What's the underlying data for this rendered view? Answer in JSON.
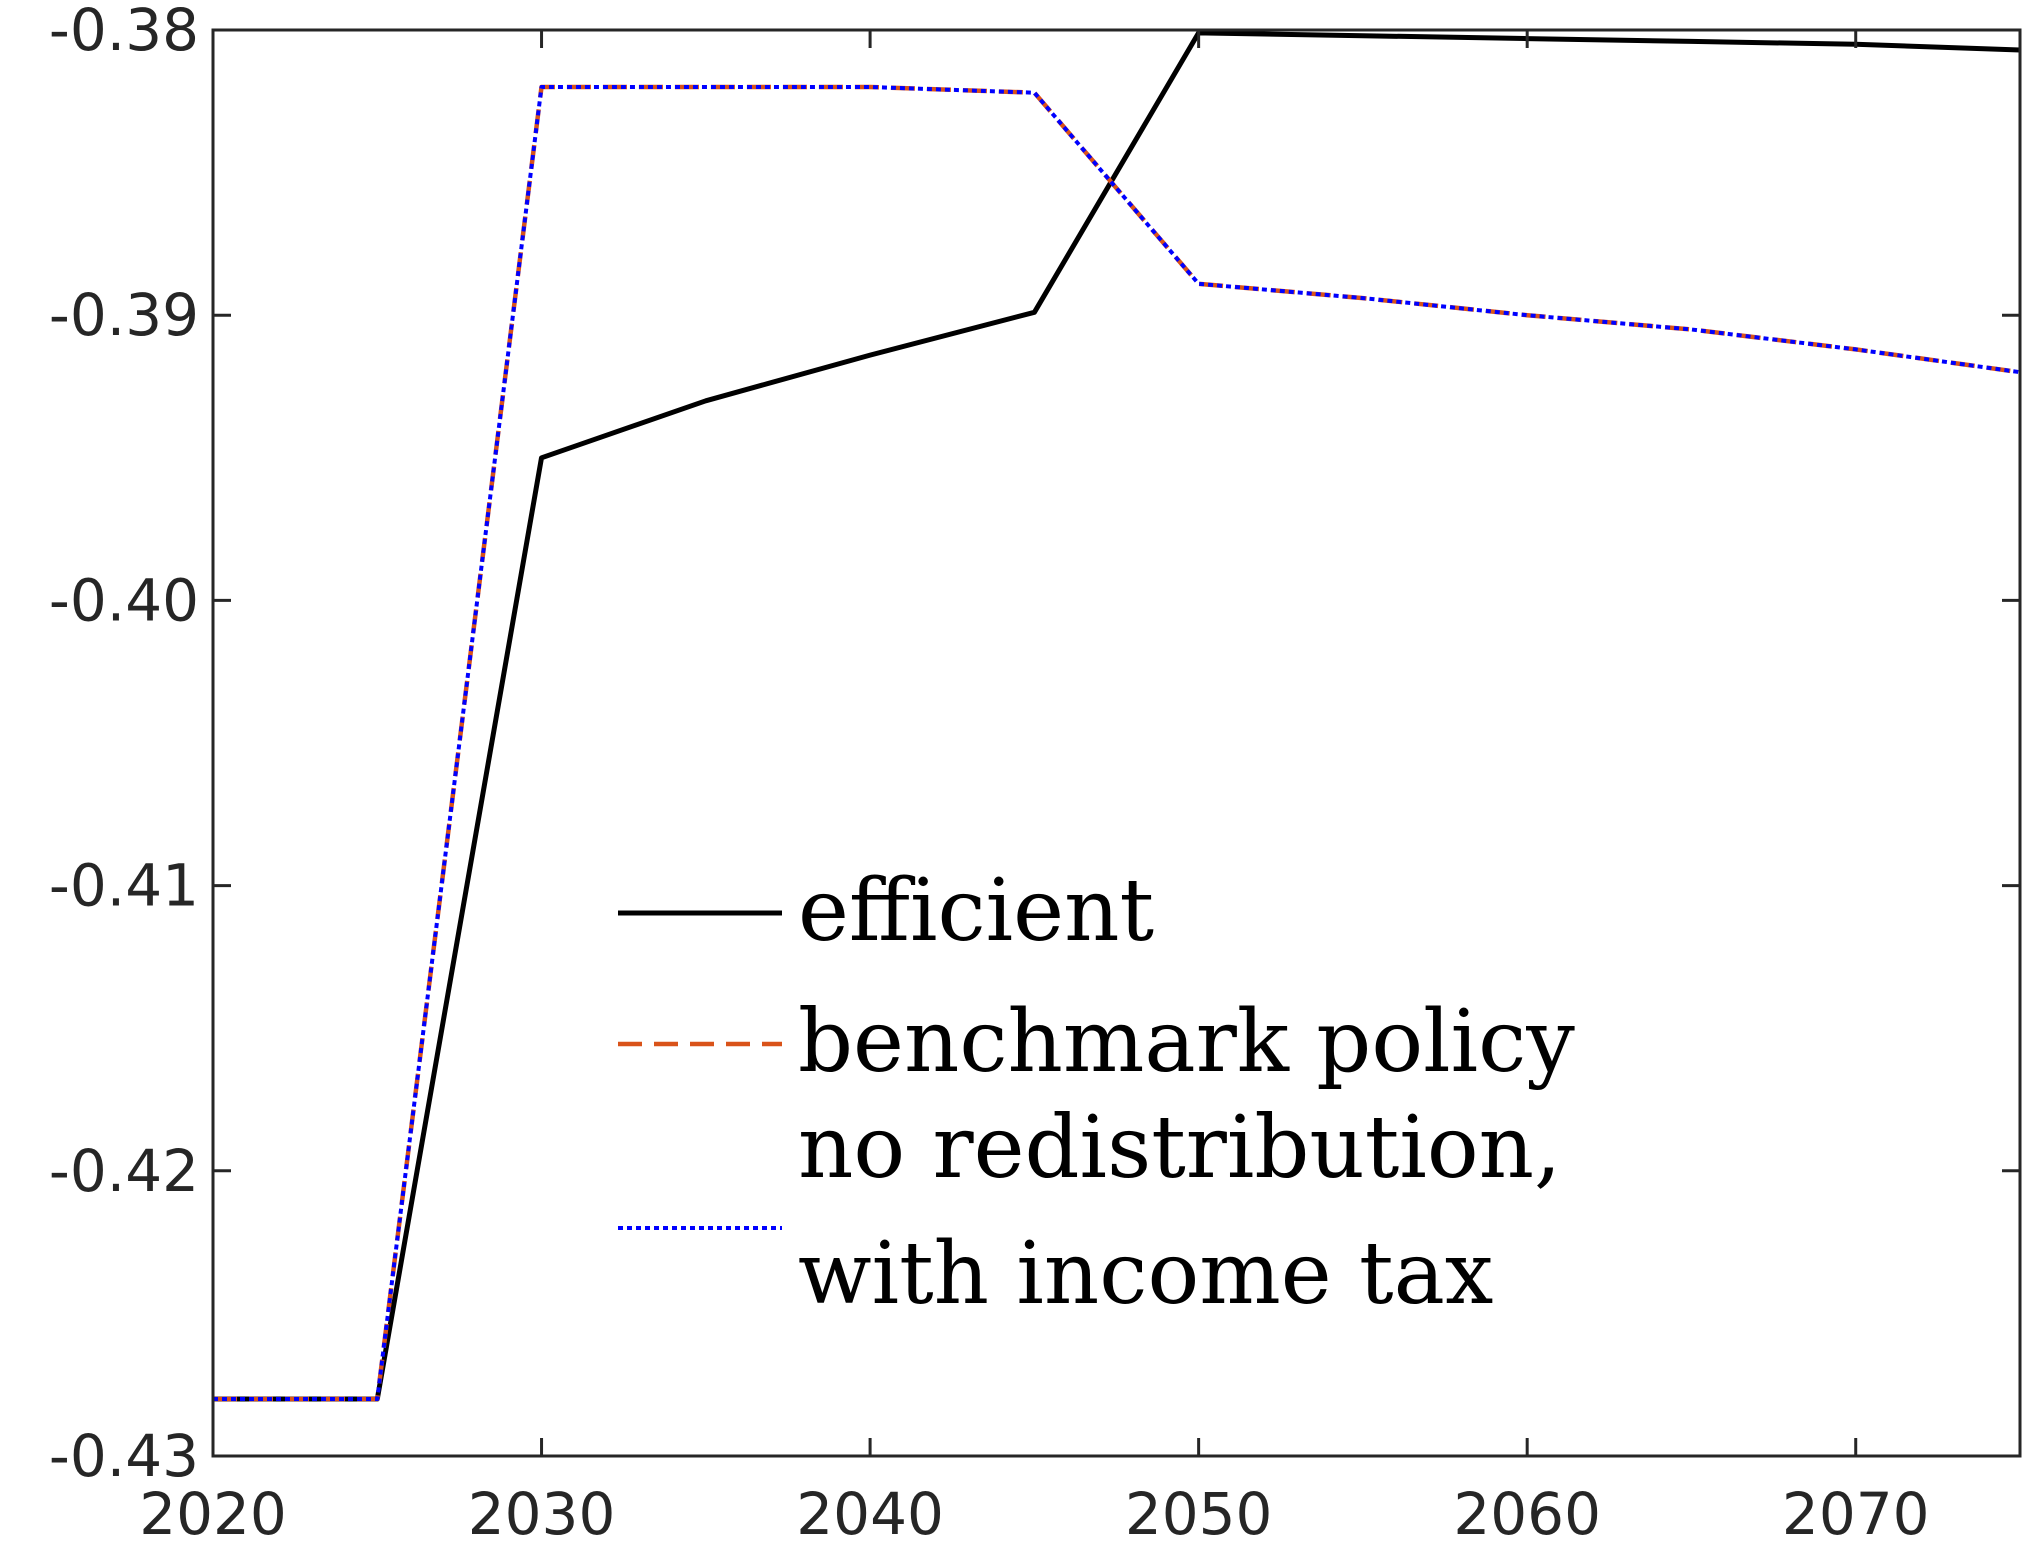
{
  "chart_data": {
    "type": "line",
    "title": "",
    "xlabel": "",
    "ylabel": "",
    "xlim": [
      2020,
      2075
    ],
    "ylim": [
      -0.43,
      -0.38
    ],
    "xticks": [
      2020,
      2030,
      2040,
      2050,
      2060,
      2070
    ],
    "xtick_labels": [
      "2020",
      "2030",
      "2040",
      "2050",
      "2060",
      "2070"
    ],
    "yticks": [
      -0.43,
      -0.42,
      -0.41,
      -0.4,
      -0.39,
      -0.38
    ],
    "ytick_labels": [
      "-0.43",
      "-0.42",
      "-0.41",
      "-0.40",
      "-0.39",
      "-0.38"
    ],
    "grid": false,
    "legend_position": "lower-center",
    "series": [
      {
        "name": "efficient",
        "color": "#000000",
        "style": "solid",
        "x": [
          2020,
          2025,
          2030,
          2035,
          2040,
          2045,
          2050,
          2055,
          2060,
          2065,
          2070,
          2075
        ],
        "y": [
          -0.428,
          -0.428,
          -0.395,
          -0.393,
          -0.3914,
          -0.3899,
          -0.3801,
          -0.3802,
          -0.3803,
          -0.3804,
          -0.3805,
          -0.3807
        ]
      },
      {
        "name": "benchmark policy",
        "color": "#D95319",
        "style": "dashed",
        "x": [
          2020,
          2025,
          2030,
          2035,
          2040,
          2045,
          2050,
          2055,
          2060,
          2065,
          2070,
          2075
        ],
        "y": [
          -0.428,
          -0.428,
          -0.382,
          -0.382,
          -0.382,
          -0.3822,
          -0.3889,
          -0.3894,
          -0.39,
          -0.3905,
          -0.3912,
          -0.392
        ]
      },
      {
        "name": "no redistribution, with income tax",
        "name_lines": [
          "no redistribution,",
          "with income tax"
        ],
        "color": "#0000FF",
        "style": "dotted",
        "x": [
          2020,
          2025,
          2030,
          2035,
          2040,
          2045,
          2050,
          2055,
          2060,
          2065,
          2070,
          2075
        ],
        "y": [
          -0.428,
          -0.428,
          -0.382,
          -0.382,
          -0.382,
          -0.3822,
          -0.3889,
          -0.3894,
          -0.39,
          -0.3905,
          -0.3912,
          -0.392
        ]
      }
    ]
  }
}
